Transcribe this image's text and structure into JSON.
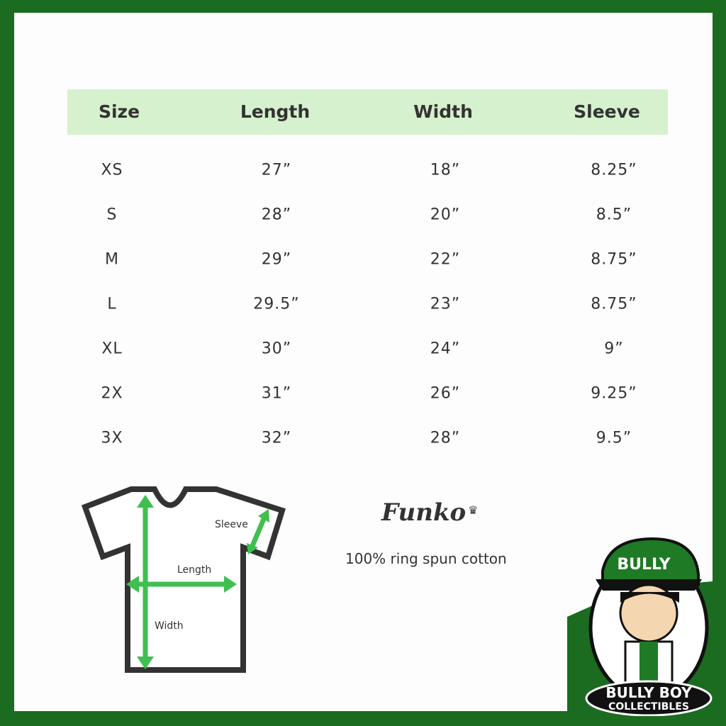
{
  "colors": {
    "border": "#1b6b20",
    "header_bg": "#d5f1cd",
    "arrow": "#3fbf50",
    "text": "#333333"
  },
  "table": {
    "headers": [
      "Size",
      "Length",
      "Width",
      "Sleeve"
    ],
    "rows": [
      [
        "XS",
        "27”",
        "18”",
        "8.25”"
      ],
      [
        "S",
        "28”",
        "20”",
        "8.5”"
      ],
      [
        "M",
        "29”",
        "22”",
        "8.75”"
      ],
      [
        "L",
        "29.5”",
        "23”",
        "8.75”"
      ],
      [
        "XL",
        "30”",
        "24”",
        "9”"
      ],
      [
        "2X",
        "31”",
        "26”",
        "9.25”"
      ],
      [
        "3X",
        "32”",
        "28”",
        "9.5”"
      ]
    ]
  },
  "diagram": {
    "sleeve": "Sleeve",
    "length": "Length",
    "width": "Width"
  },
  "brand": {
    "funko": "Funko",
    "material": "100% ring spun cotton"
  },
  "logo": {
    "cap": "BULLY",
    "line1": "BULLY BOY",
    "line2": "COLLECTIBLES"
  }
}
